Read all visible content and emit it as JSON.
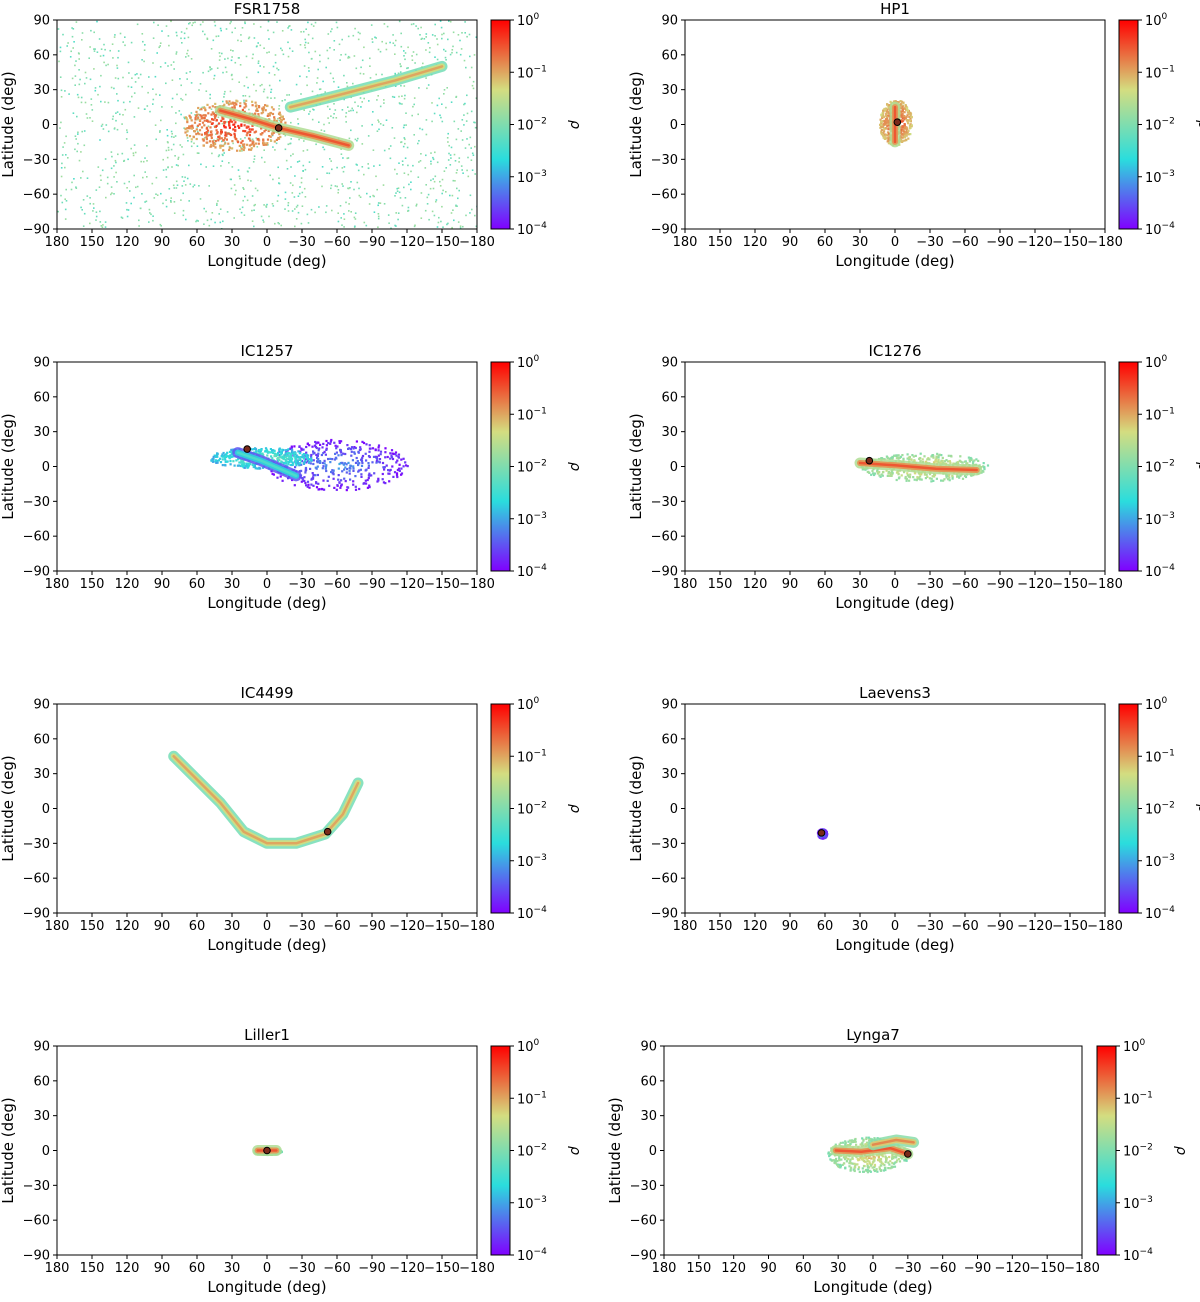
{
  "figure": {
    "colorbar": {
      "label": "ρ",
      "ticks": [
        {
          "exp": "0",
          "text": "10^0"
        },
        {
          "exp": "−1",
          "text": "10^-1"
        },
        {
          "exp": "−2",
          "text": "10^-2"
        },
        {
          "exp": "−3",
          "text": "10^-3"
        },
        {
          "exp": "−4",
          "text": "10^-4"
        }
      ],
      "range": [
        0.0001,
        1
      ],
      "colormap": "rainbow",
      "colors": [
        "#8000ff",
        "#2adddd",
        "#d4dd80",
        "#ff0000"
      ]
    }
  },
  "chart_data": [
    {
      "type": "heatmap",
      "title": "FSR1758",
      "xlabel": "Longitude (deg)",
      "ylabel": "Latitude (deg)",
      "xlim": [
        180,
        -180
      ],
      "ylim": [
        -90,
        90
      ],
      "xticks": [
        "180",
        "150",
        "120",
        "90",
        "60",
        "30",
        "0",
        "−30",
        "−60",
        "−90",
        "−120",
        "−150",
        "−180"
      ],
      "yticks": [
        "90",
        "60",
        "30",
        "0",
        "−30",
        "−60",
        "−90"
      ],
      "center": {
        "lon": -10,
        "lat": -3
      },
      "features": [
        {
          "kind": "halo",
          "lon_range": [
            180,
            -180
          ],
          "lat_range": [
            -90,
            90
          ],
          "density": 0.01
        },
        {
          "kind": "blob",
          "lon": 28,
          "lat": 0,
          "dlon": 45,
          "dlat": 22,
          "density": 0.15
        },
        {
          "kind": "stream",
          "points": [
            [
              40,
              12
            ],
            [
              15,
              5
            ],
            [
              -10,
              -3
            ],
            [
              -40,
              -10
            ],
            [
              -70,
              -18
            ]
          ],
          "density": 0.3
        },
        {
          "kind": "stream",
          "points": [
            [
              -20,
              15
            ],
            [
              -60,
              25
            ],
            [
              -110,
              38
            ],
            [
              -150,
              50
            ]
          ],
          "density": 0.1
        }
      ]
    },
    {
      "type": "heatmap",
      "title": "HP1",
      "xlabel": "Longitude (deg)",
      "ylabel": "Latitude (deg)",
      "xlim": [
        180,
        -180
      ],
      "ylim": [
        -90,
        90
      ],
      "xticks": [
        "180",
        "150",
        "120",
        "90",
        "60",
        "30",
        "0",
        "−30",
        "−60",
        "−90",
        "−120",
        "−150",
        "−180"
      ],
      "yticks": [
        "90",
        "60",
        "30",
        "0",
        "−30",
        "−60",
        "−90"
      ],
      "center": {
        "lon": -2,
        "lat": 2
      },
      "features": [
        {
          "kind": "blob",
          "lon": 0,
          "lat": 2,
          "dlon": 14,
          "dlat": 20,
          "density": 0.1
        },
        {
          "kind": "stream",
          "points": [
            [
              0,
              15
            ],
            [
              0,
              0
            ],
            [
              0,
              -15
            ]
          ],
          "density": 0.3
        }
      ]
    },
    {
      "type": "heatmap",
      "title": "IC1257",
      "xlabel": "Longitude (deg)",
      "ylabel": "Latitude (deg)",
      "xlim": [
        180,
        -180
      ],
      "ylim": [
        -90,
        90
      ],
      "xticks": [
        "180",
        "150",
        "120",
        "90",
        "60",
        "30",
        "0",
        "−30",
        "−60",
        "−90",
        "−120",
        "−150",
        "−180"
      ],
      "yticks": [
        "90",
        "60",
        "30",
        "0",
        "−30",
        "−60",
        "−90"
      ],
      "center": {
        "lon": 17,
        "lat": 15
      },
      "features": [
        {
          "kind": "blob",
          "lon": -60,
          "lat": 2,
          "dlon": 60,
          "dlat": 22,
          "density": 0.0002
        },
        {
          "kind": "blob",
          "lon": 5,
          "lat": 8,
          "dlon": 45,
          "dlat": 9,
          "density": 0.002
        },
        {
          "kind": "stream",
          "points": [
            [
              25,
              12
            ],
            [
              5,
              5
            ],
            [
              -25,
              -8
            ]
          ],
          "density": 0.004
        }
      ]
    },
    {
      "type": "heatmap",
      "title": "IC1276",
      "xlabel": "Longitude (deg)",
      "ylabel": "Latitude (deg)",
      "xlim": [
        180,
        -180
      ],
      "ylim": [
        -90,
        90
      ],
      "xticks": [
        "180",
        "150",
        "120",
        "90",
        "60",
        "30",
        "0",
        "−30",
        "−60",
        "−90",
        "−120",
        "−150",
        "−180"
      ],
      "yticks": [
        "90",
        "60",
        "30",
        "0",
        "−30",
        "−60",
        "−90"
      ],
      "center": {
        "lon": 22,
        "lat": 5
      },
      "features": [
        {
          "kind": "blob",
          "lon": -25,
          "lat": 0,
          "dlon": 55,
          "dlat": 12,
          "density": 0.02
        },
        {
          "kind": "stream",
          "points": [
            [
              30,
              3
            ],
            [
              0,
              1
            ],
            [
              -35,
              -2
            ],
            [
              -70,
              -3
            ]
          ],
          "density": 0.3
        }
      ]
    },
    {
      "type": "heatmap",
      "title": "IC4499",
      "xlabel": "Longitude (deg)",
      "ylabel": "Latitude (deg)",
      "xlim": [
        180,
        -180
      ],
      "ylim": [
        -90,
        90
      ],
      "xticks": [
        "180",
        "150",
        "120",
        "90",
        "60",
        "30",
        "0",
        "−30",
        "−60",
        "−90",
        "−120",
        "−150",
        "−180"
      ],
      "yticks": [
        "90",
        "60",
        "30",
        "0",
        "−30",
        "−60",
        "−90"
      ],
      "center": {
        "lon": -52,
        "lat": -20
      },
      "features": [
        {
          "kind": "stream",
          "points": [
            [
              80,
              45
            ],
            [
              60,
              25
            ],
            [
              40,
              5
            ],
            [
              20,
              -20
            ],
            [
              0,
              -30
            ],
            [
              -25,
              -30
            ],
            [
              -50,
              -22
            ],
            [
              -65,
              -5
            ],
            [
              -78,
              22
            ]
          ],
          "density": 0.1
        }
      ]
    },
    {
      "type": "heatmap",
      "title": "Laevens3",
      "xlabel": "Longitude (deg)",
      "ylabel": "Latitude (deg)",
      "xlim": [
        180,
        -180
      ],
      "ylim": [
        -90,
        90
      ],
      "xticks": [
        "180",
        "150",
        "120",
        "90",
        "60",
        "30",
        "0",
        "−30",
        "−60",
        "−90",
        "−120",
        "−150",
        "−180"
      ],
      "yticks": [
        "90",
        "60",
        "30",
        "0",
        "−30",
        "−60",
        "−90"
      ],
      "center": {
        "lon": 63,
        "lat": -21
      },
      "features": [
        {
          "kind": "blob",
          "lon": 63,
          "lat": -21,
          "dlon": 4,
          "dlat": 4,
          "density": 0.0003
        }
      ]
    },
    {
      "type": "heatmap",
      "title": "Liller1",
      "xlabel": "Longitude (deg)",
      "ylabel": "Latitude (deg)",
      "xlim": [
        180,
        -180
      ],
      "ylim": [
        -90,
        90
      ],
      "xticks": [
        "180",
        "150",
        "120",
        "90",
        "60",
        "30",
        "0",
        "−30",
        "−60",
        "−90",
        "−120",
        "−150",
        "−180"
      ],
      "yticks": [
        "90",
        "60",
        "30",
        "0",
        "−30",
        "−60",
        "−90"
      ],
      "center": {
        "lon": 0,
        "lat": 0
      },
      "features": [
        {
          "kind": "blob",
          "lon": 0,
          "lat": 0,
          "dlon": 12,
          "dlat": 3,
          "density": 0.01
        },
        {
          "kind": "stream",
          "points": [
            [
              8,
              0
            ],
            [
              0,
              0
            ],
            [
              -8,
              0
            ]
          ],
          "density": 0.3
        }
      ]
    },
    {
      "type": "heatmap",
      "title": "Lynga7",
      "xlabel": "Longitude (deg)",
      "ylabel": "Latitude (deg)",
      "xlim": [
        180,
        -180
      ],
      "ylim": [
        -90,
        90
      ],
      "xticks": [
        "180",
        "150",
        "120",
        "90",
        "60",
        "30",
        "0",
        "−30",
        "−60",
        "−90",
        "−120",
        "−150",
        "−180"
      ],
      "yticks": [
        "90",
        "60",
        "30",
        "0",
        "−30",
        "−60",
        "−90"
      ],
      "center": {
        "lon": -30,
        "lat": -3
      },
      "features": [
        {
          "kind": "blob",
          "lon": 5,
          "lat": -3,
          "dlon": 35,
          "dlat": 15,
          "density": 0.02
        },
        {
          "kind": "stream",
          "points": [
            [
              32,
              0
            ],
            [
              10,
              -1
            ],
            [
              -15,
              2
            ],
            [
              -30,
              -3
            ]
          ],
          "density": 0.3
        },
        {
          "kind": "stream",
          "points": [
            [
              0,
              5
            ],
            [
              -20,
              9
            ],
            [
              -35,
              7
            ]
          ],
          "density": 0.15
        }
      ]
    }
  ]
}
